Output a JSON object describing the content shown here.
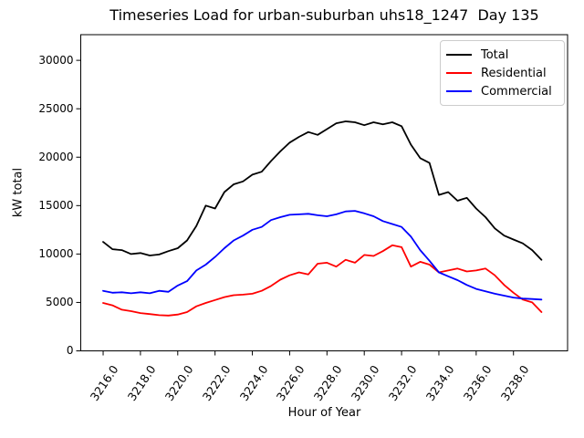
{
  "chart_data": {
    "type": "line",
    "title": "Timeseries Load for urban-suburban uhs18_1247  Day 135",
    "xlabel": "Hour of Year",
    "ylabel": "kW total",
    "grid": false,
    "legend_position": "upper right",
    "background": "#ffffff",
    "axis_color": "#000000",
    "xlim": [
      3214.8,
      3240.9
    ],
    "ylim": [
      0,
      32650
    ],
    "xticks": [
      3216,
      3218,
      3220,
      3222,
      3224,
      3226,
      3228,
      3230,
      3232,
      3234,
      3236,
      3238
    ],
    "xtick_labels": [
      "3216.0",
      "3218.0",
      "3220.0",
      "3222.0",
      "3224.0",
      "3226.0",
      "3228.0",
      "3230.0",
      "3232.0",
      "3234.0",
      "3236.0",
      "3238.0"
    ],
    "yticks": [
      0,
      5000,
      10000,
      15000,
      20000,
      25000,
      30000
    ],
    "ytick_labels": [
      "0",
      "5000",
      "10000",
      "15000",
      "20000",
      "25000",
      "30000"
    ],
    "x_start": 3216.0,
    "x_step": 0.5,
    "series": [
      {
        "name": "Total",
        "color": "#000000",
        "values": [
          11250,
          10500,
          10400,
          10000,
          10100,
          9850,
          9950,
          10300,
          10600,
          11400,
          12900,
          15000,
          14700,
          16400,
          17200,
          17500,
          18200,
          18500,
          19600,
          20600,
          21500,
          22100,
          22600,
          22300,
          22900,
          23500,
          23700,
          23600,
          23300,
          23600,
          23400,
          23600,
          23200,
          21300,
          19900,
          19400,
          16100,
          16400,
          15500,
          15800,
          14700,
          13800,
          12650,
          11900,
          11500,
          11100,
          10400,
          9400
        ]
      },
      {
        "name": "Residential",
        "color": "#ff0000",
        "values": [
          4950,
          4700,
          4250,
          4100,
          3900,
          3800,
          3680,
          3650,
          3750,
          4000,
          4600,
          4950,
          5250,
          5550,
          5750,
          5800,
          5900,
          6200,
          6700,
          7350,
          7800,
          8100,
          7900,
          9000,
          9100,
          8700,
          9400,
          9100,
          9900,
          9800,
          10300,
          10900,
          10700,
          8700,
          9200,
          8900,
          8100,
          8300,
          8500,
          8200,
          8300,
          8500,
          7800,
          6800,
          6000,
          5300,
          5000,
          4000
        ]
      },
      {
        "name": "Commercial",
        "color": "#0000ff",
        "values": [
          6200,
          6000,
          6050,
          5950,
          6050,
          5950,
          6200,
          6100,
          6750,
          7200,
          8300,
          8900,
          9700,
          10600,
          11400,
          11900,
          12500,
          12800,
          13500,
          13800,
          14050,
          14100,
          14150,
          14000,
          13900,
          14100,
          14400,
          14450,
          14200,
          13900,
          13400,
          13100,
          12800,
          11800,
          10400,
          9300,
          8100,
          7700,
          7300,
          6800,
          6400,
          6150,
          5900,
          5700,
          5500,
          5400,
          5350,
          5300
        ]
      }
    ]
  }
}
